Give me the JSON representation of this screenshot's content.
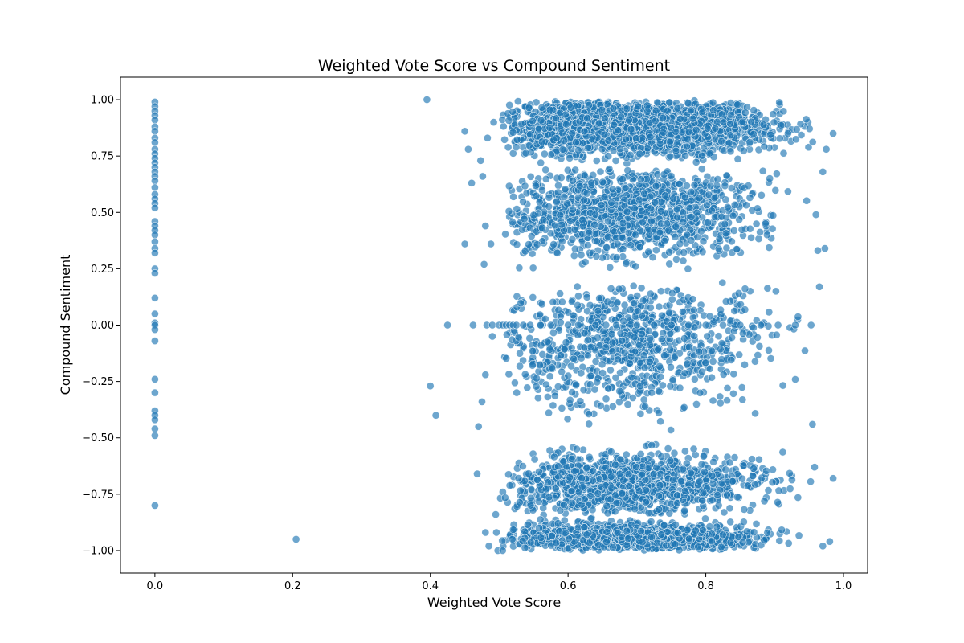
{
  "chart_data": {
    "type": "scatter",
    "title": "Weighted Vote Score vs Compound Sentiment",
    "xlabel": "Weighted Vote Score",
    "ylabel": "Compound Sentiment",
    "xlim": [
      -0.05,
      1.035
    ],
    "ylim": [
      -1.1,
      1.1
    ],
    "xticks": [
      0.0,
      0.2,
      0.4,
      0.6,
      0.8,
      1.0
    ],
    "xtick_labels": [
      "0.0",
      "0.2",
      "0.4",
      "0.6",
      "0.8",
      "1.0"
    ],
    "yticks": [
      -1.0,
      -0.75,
      -0.5,
      -0.25,
      0.0,
      0.25,
      0.5,
      0.75,
      1.0
    ],
    "ytick_labels": [
      "−1.00",
      "−0.75",
      "−0.50",
      "−0.25",
      "0.00",
      "0.25",
      "0.50",
      "0.75",
      "1.00"
    ],
    "grid": false,
    "marker_color": "#1f77b4",
    "marker_edge_color": "#ffffff",
    "marker_alpha": 0.65,
    "series": [
      {
        "values": [
          [
            0.0,
            0.99
          ],
          [
            0.0,
            0.97
          ],
          [
            0.0,
            0.95
          ],
          [
            0.0,
            0.93
          ],
          [
            0.0,
            0.91
          ],
          [
            0.0,
            0.88
          ],
          [
            0.0,
            0.86
          ],
          [
            0.0,
            0.83
          ],
          [
            0.0,
            0.81
          ],
          [
            0.0,
            0.78
          ],
          [
            0.0,
            0.76
          ],
          [
            0.0,
            0.74
          ],
          [
            0.0,
            0.72
          ],
          [
            0.0,
            0.7
          ],
          [
            0.0,
            0.68
          ],
          [
            0.0,
            0.66
          ],
          [
            0.0,
            0.64
          ],
          [
            0.0,
            0.61
          ],
          [
            0.0,
            0.58
          ],
          [
            0.0,
            0.56
          ],
          [
            0.0,
            0.54
          ],
          [
            0.0,
            0.52
          ],
          [
            0.0,
            0.46
          ],
          [
            0.0,
            0.44
          ],
          [
            0.0,
            0.42
          ],
          [
            0.0,
            0.4
          ],
          [
            0.0,
            0.37
          ],
          [
            0.0,
            0.34
          ],
          [
            0.0,
            0.32
          ],
          [
            0.0,
            0.25
          ],
          [
            0.0,
            0.23
          ],
          [
            0.0,
            0.12
          ],
          [
            0.0,
            0.05
          ],
          [
            0.0,
            0.01
          ],
          [
            0.0,
            0.0
          ],
          [
            0.0,
            -0.02
          ],
          [
            0.0,
            -0.07
          ],
          [
            0.0,
            -0.24
          ],
          [
            0.0,
            -0.3
          ],
          [
            0.0,
            -0.38
          ],
          [
            0.0,
            -0.4
          ],
          [
            0.0,
            -0.42
          ],
          [
            0.0,
            -0.46
          ],
          [
            0.0,
            -0.49
          ],
          [
            0.0,
            -0.8
          ],
          [
            0.205,
            -0.95
          ],
          [
            0.395,
            1.0
          ],
          [
            0.4,
            -0.27
          ],
          [
            0.408,
            -0.4
          ],
          [
            0.425,
            0.0
          ],
          [
            0.45,
            0.86
          ],
          [
            0.45,
            0.36
          ],
          [
            0.455,
            0.78
          ],
          [
            0.46,
            0.63
          ],
          [
            0.462,
            0.0
          ],
          [
            0.468,
            -0.66
          ],
          [
            0.47,
            -0.45
          ],
          [
            0.473,
            0.73
          ],
          [
            0.475,
            -0.34
          ],
          [
            0.476,
            0.66
          ],
          [
            0.478,
            0.27
          ],
          [
            0.48,
            0.44
          ],
          [
            0.48,
            -0.22
          ],
          [
            0.48,
            -0.92
          ],
          [
            0.482,
            0.0
          ],
          [
            0.483,
            0.83
          ],
          [
            0.485,
            -0.98
          ],
          [
            0.488,
            0.36
          ],
          [
            0.49,
            0.0
          ],
          [
            0.49,
            -0.05
          ],
          [
            0.492,
            0.9
          ],
          [
            0.495,
            -0.84
          ],
          [
            0.496,
            -0.92
          ],
          [
            0.498,
            -1.0
          ],
          [
            0.5,
            0.0
          ],
          [
            0.505,
            0.0
          ],
          [
            0.505,
            -1.0
          ],
          [
            0.51,
            0.0
          ],
          [
            0.515,
            0.0
          ],
          [
            0.52,
            0.0
          ],
          [
            0.525,
            0.0
          ],
          [
            0.535,
            0.0
          ],
          [
            0.545,
            0.0
          ],
          [
            0.56,
            0.0
          ],
          [
            0.575,
            0.0
          ],
          [
            0.6,
            0.0
          ],
          [
            0.615,
            0.0
          ],
          [
            0.64,
            0.0
          ],
          [
            0.655,
            0.0
          ],
          [
            0.67,
            0.0
          ],
          [
            0.7,
            0.0
          ],
          [
            0.725,
            0.0
          ],
          [
            0.75,
            0.0
          ],
          [
            0.775,
            0.0
          ],
          [
            0.8,
            0.0
          ],
          [
            0.825,
            0.0
          ],
          [
            0.85,
            0.0
          ],
          [
            0.88,
            0.0
          ],
          [
            0.905,
            0.0
          ],
          [
            0.93,
            0.0
          ],
          [
            0.985,
            0.85
          ],
          [
            0.985,
            -0.68
          ],
          [
            0.98,
            -0.96
          ],
          [
            0.975,
            0.78
          ],
          [
            0.973,
            0.34
          ],
          [
            0.97,
            -0.98
          ],
          [
            0.97,
            0.68
          ],
          [
            0.965,
            0.17
          ],
          [
            0.96,
            0.49
          ],
          [
            0.958,
            -0.63
          ],
          [
            0.955,
            -0.44
          ],
          [
            0.953,
            0.0
          ]
        ],
        "noise": [
          {
            "count": 2400,
            "x": [
              0.5,
              0.98
            ],
            "y": [
              0.7,
              1.0
            ],
            "x_peak": 0.65,
            "y_peak": 1.0
          },
          {
            "count": 1150,
            "x": [
              0.5,
              0.97
            ],
            "y": [
              0.2,
              0.7
            ],
            "x_peak": 0.58,
            "y_peak": 0.7
          },
          {
            "count": 850,
            "x": [
              0.5,
              0.97
            ],
            "y": [
              -0.5,
              0.2
            ],
            "x_peak": 0.58,
            "y_peak": 0.0
          },
          {
            "count": 1150,
            "x": [
              0.5,
              0.97
            ],
            "y": [
              -0.85,
              -0.5
            ],
            "x_peak": 0.62,
            "y_peak": -0.85
          },
          {
            "count": 1250,
            "x": [
              0.5,
              0.97
            ],
            "y": [
              -1.0,
              -0.85
            ],
            "x_peak": 0.7,
            "y_peak": -1.0
          }
        ]
      }
    ]
  }
}
